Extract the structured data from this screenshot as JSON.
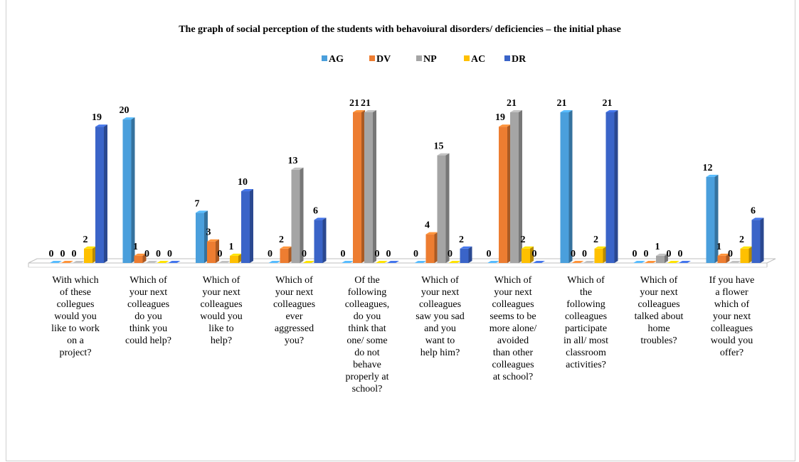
{
  "chart_data": {
    "type": "bar",
    "title": "The graph of social perception of the students with behavoiural disorders/ deficiencies – the initial phase",
    "legend_position": "top",
    "grid": false,
    "ylim": [
      0,
      21
    ],
    "categories": [
      [
        "With which",
        "of these",
        "collegues",
        "would you",
        "like to work",
        "on a",
        "project?"
      ],
      [
        "Which of",
        "your next",
        "colleagues",
        "do you",
        "think you",
        "could help?"
      ],
      [
        "Which of",
        "your next",
        "colleagues",
        "would you",
        "like to",
        "help?"
      ],
      [
        "Which of",
        "your next",
        "colleagues",
        "ever",
        "aggressed",
        "you?"
      ],
      [
        "Of the",
        "following",
        "colleagues,",
        "do you",
        "think that",
        "one/ some",
        "do not",
        "behave",
        "properly at",
        "school?"
      ],
      [
        "Which of",
        "your next",
        "colleagues",
        "saw you sad",
        "and you",
        "want to",
        "help him?"
      ],
      [
        "Which of",
        "your next",
        "colleagues",
        "seems to be",
        "more alone/",
        "avoided",
        "than other",
        "colleagues",
        "at school?"
      ],
      [
        "Which of",
        "the",
        "following",
        "colleagues",
        "participate",
        "in all/ most",
        "classroom",
        "activities?"
      ],
      [
        "Which of",
        "your next",
        "colleagues",
        "talked about",
        "home",
        "troubles?"
      ],
      [
        "If you have",
        "a flower",
        "which of",
        "your next",
        "colleagues",
        "would you",
        "offer?"
      ]
    ],
    "series": [
      {
        "name": "AG",
        "color": "#4a9fdc",
        "values": [
          0,
          20,
          7,
          0,
          0,
          0,
          0,
          21,
          0,
          12
        ]
      },
      {
        "name": "DV",
        "color": "#ed7d31",
        "values": [
          0,
          1,
          3,
          2,
          21,
          4,
          19,
          0,
          0,
          1
        ]
      },
      {
        "name": "NP",
        "color": "#a5a5a5",
        "values": [
          0,
          0,
          0,
          13,
          21,
          15,
          21,
          0,
          1,
          0
        ]
      },
      {
        "name": "AC",
        "color": "#ffc000",
        "values": [
          2,
          0,
          1,
          0,
          0,
          0,
          2,
          2,
          0,
          2
        ]
      },
      {
        "name": "DR",
        "color": "#3a64c8",
        "values": [
          19,
          0,
          10,
          6,
          0,
          2,
          0,
          21,
          0,
          6
        ]
      }
    ]
  }
}
